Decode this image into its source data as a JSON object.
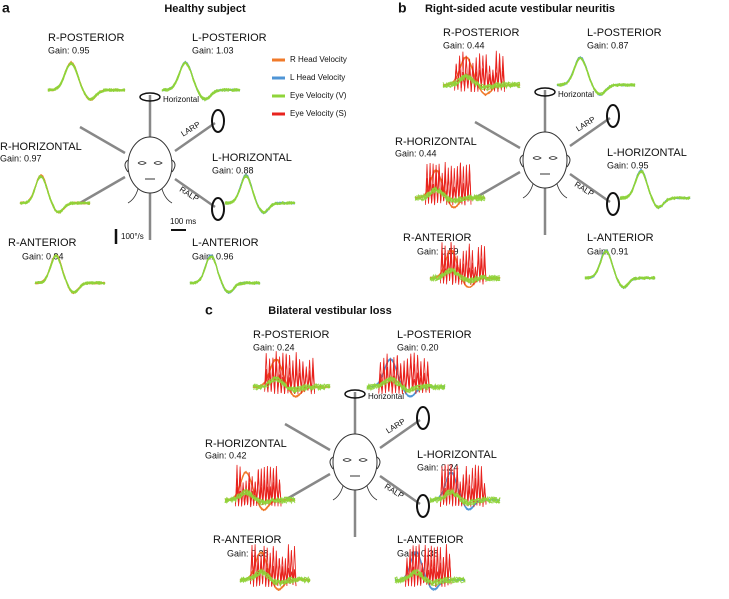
{
  "panels": [
    {
      "letter": "a",
      "title": "Healthy subject",
      "canals": [
        {
          "label": "R-POSTERIOR",
          "gain": "Gain: 0.95"
        },
        {
          "label": "L-POSTERIOR",
          "gain": "Gain: 1.03"
        },
        {
          "label": "R-HORIZONTAL",
          "gain": "Gain: 0.97"
        },
        {
          "label": "L-HORIZONTAL",
          "gain": "Gain: 0.88"
        },
        {
          "label": "R-ANTERIOR",
          "gain": "Gain: 0.94"
        },
        {
          "label": "L-ANTERIOR",
          "gain": "Gain: 0.96"
        }
      ],
      "axes": {
        "horizontal": "Horizontal",
        "larp": "LARP",
        "ralp": "RALP"
      }
    },
    {
      "letter": "b",
      "title": "Right-sided acute vestibular neuritis",
      "canals": [
        {
          "label": "R-POSTERIOR",
          "gain": "Gain: 0.44"
        },
        {
          "label": "L-POSTERIOR",
          "gain": "Gain: 0.87"
        },
        {
          "label": "R-HORIZONTAL",
          "gain": "Gain: 0.44"
        },
        {
          "label": "L-HORIZONTAL",
          "gain": "Gain: 0.95"
        },
        {
          "label": "R-ANTERIOR",
          "gain": "Gain: 0.59"
        },
        {
          "label": "L-ANTERIOR",
          "gain": "Gain: 0.91"
        }
      ],
      "axes": {
        "horizontal": "Horizontal",
        "larp": "LARP",
        "ralp": "RALP"
      }
    },
    {
      "letter": "c",
      "title": "Bilateral vestibular loss",
      "canals": [
        {
          "label": "R-POSTERIOR",
          "gain": "Gain: 0.24"
        },
        {
          "label": "L-POSTERIOR",
          "gain": "Gain: 0.20"
        },
        {
          "label": "R-HORIZONTAL",
          "gain": "Gain: 0.42"
        },
        {
          "label": "L-HORIZONTAL",
          "gain": "Gain: 0.24"
        },
        {
          "label": "R-ANTERIOR",
          "gain": "Gain: 0.38"
        },
        {
          "label": "L-ANTERIOR",
          "gain": "Gain: 0.38"
        }
      ],
      "axes": {
        "horizontal": "Horizontal",
        "larp": "LARP",
        "ralp": "RALP"
      }
    }
  ],
  "legend": [
    {
      "label": "R Head Velocity",
      "color": "#f07a2a"
    },
    {
      "label": "L Head Velocity",
      "color": "#4f95d6"
    },
    {
      "label": "Eye Velocity (V)",
      "color": "#8fd43a"
    },
    {
      "label": "Eye Velocity (S)",
      "color": "#e8231e"
    }
  ],
  "scale_bar": {
    "velocity": "100°/s",
    "time": "100 ms"
  }
}
